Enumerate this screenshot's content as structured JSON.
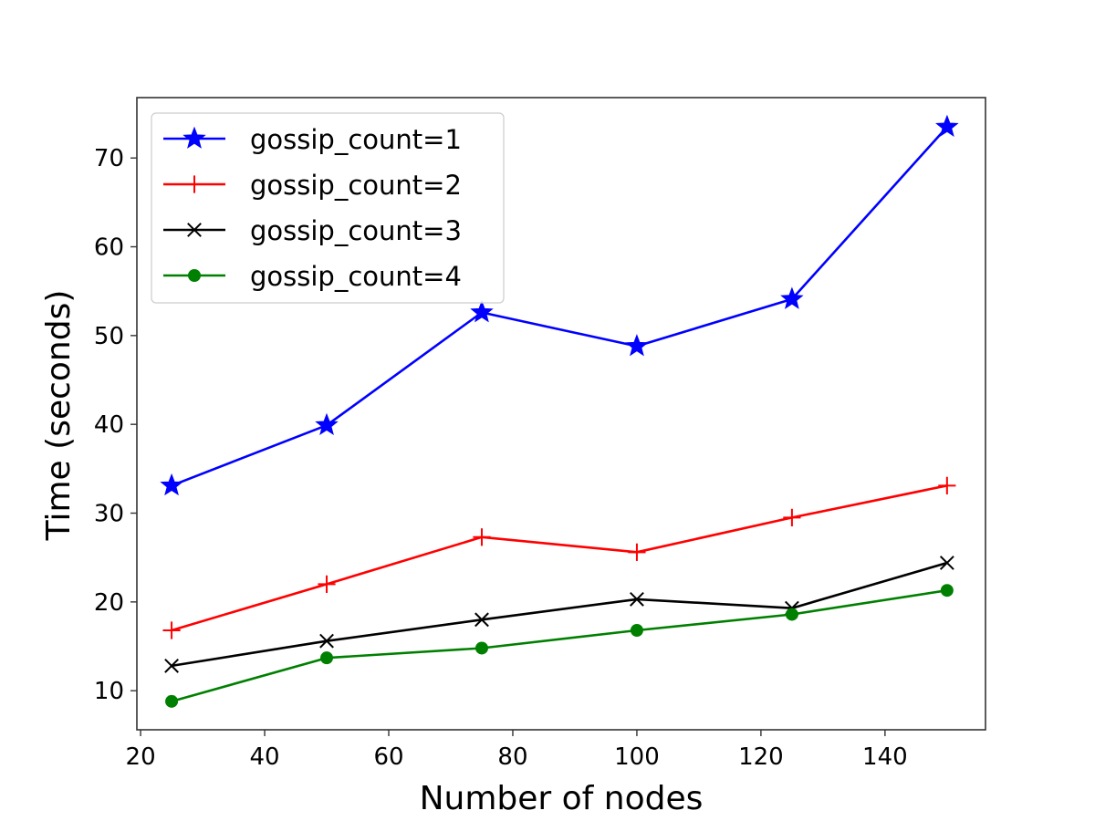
{
  "chart_data": {
    "type": "line",
    "title": "",
    "xlabel": "Number of nodes",
    "ylabel": "Time (seconds)",
    "x": [
      25,
      50,
      75,
      100,
      125,
      150
    ],
    "xlim": [
      19.4,
      156.2
    ],
    "ylim": [
      5.6,
      76.8
    ],
    "xticks": [
      20,
      40,
      60,
      80,
      100,
      120,
      140
    ],
    "yticks": [
      10,
      20,
      30,
      40,
      50,
      60,
      70
    ],
    "grid": false,
    "legend_position": "upper left",
    "series": [
      {
        "name": "gossip_count=1",
        "color": "#0000ff",
        "marker": "star",
        "values": [
          33.1,
          39.9,
          52.6,
          48.8,
          54.1,
          73.5
        ]
      },
      {
        "name": "gossip_count=2",
        "color": "#ff0000",
        "marker": "plus",
        "values": [
          16.8,
          22.0,
          27.3,
          25.6,
          29.5,
          33.1
        ]
      },
      {
        "name": "gossip_count=3",
        "color": "#000000",
        "marker": "x",
        "values": [
          12.8,
          15.6,
          18.0,
          20.3,
          19.3,
          24.4
        ]
      },
      {
        "name": "gossip_count=4",
        "color": "#008000",
        "marker": "circle",
        "values": [
          8.8,
          13.7,
          14.8,
          16.8,
          18.6,
          21.3
        ]
      }
    ]
  }
}
